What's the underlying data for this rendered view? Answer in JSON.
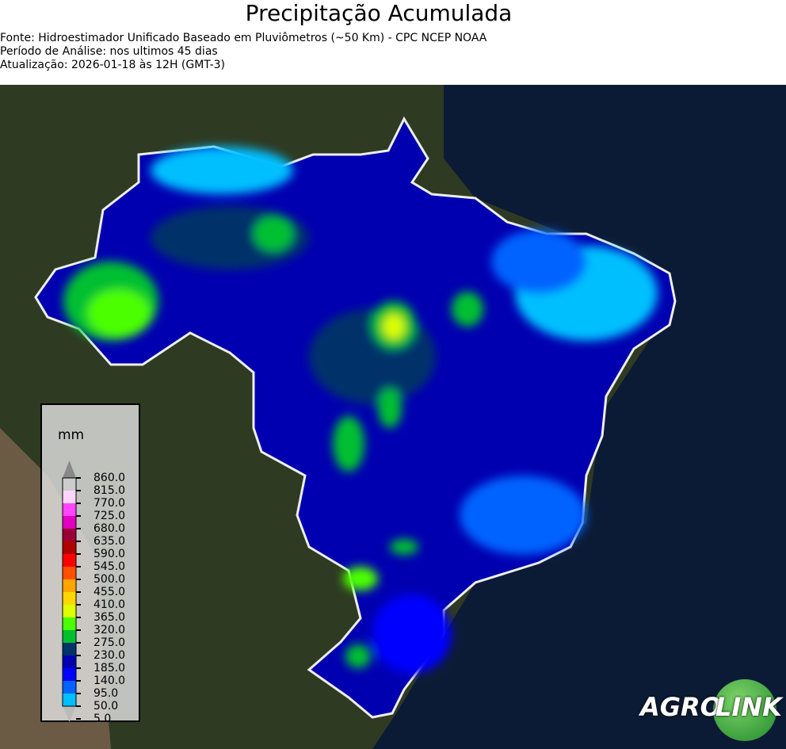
{
  "header": {
    "title": "Precipitação Acumulada",
    "source": "Fonte: Hidroestimador Unificado Baseado em Pluviômetros (~50 Km) - CPC NCEP NOAA",
    "period": "Período de Análise: nos ultimos 45 dias",
    "updated": "Atualização: 2026-01-18 às 12H (GMT-3)"
  },
  "legend": {
    "unit": "mm",
    "ticks": [
      "860.0",
      "815.0",
      "770.0",
      "725.0",
      "680.0",
      "635.0",
      "590.0",
      "545.0",
      "500.0",
      "455.0",
      "410.0",
      "365.0",
      "320.0",
      "275.0",
      "230.0",
      "185.0",
      "140.0",
      "95.0",
      "50.0",
      "5.0"
    ],
    "colors_top_to_bottom": [
      "#888888",
      "#cccccc",
      "#ffd5ff",
      "#ff44ff",
      "#e000c0",
      "#990033",
      "#b00000",
      "#ff0000",
      "#ff5000",
      "#ffa500",
      "#ffd700",
      "#ddff00",
      "#4cff00",
      "#00c030",
      "#00336b",
      "#0000b0",
      "#0000ff",
      "#0063ff",
      "#00bfff",
      "#bbbbbb"
    ]
  },
  "logo": {
    "text_left": "AGRO",
    "text_right": "LINK"
  }
}
